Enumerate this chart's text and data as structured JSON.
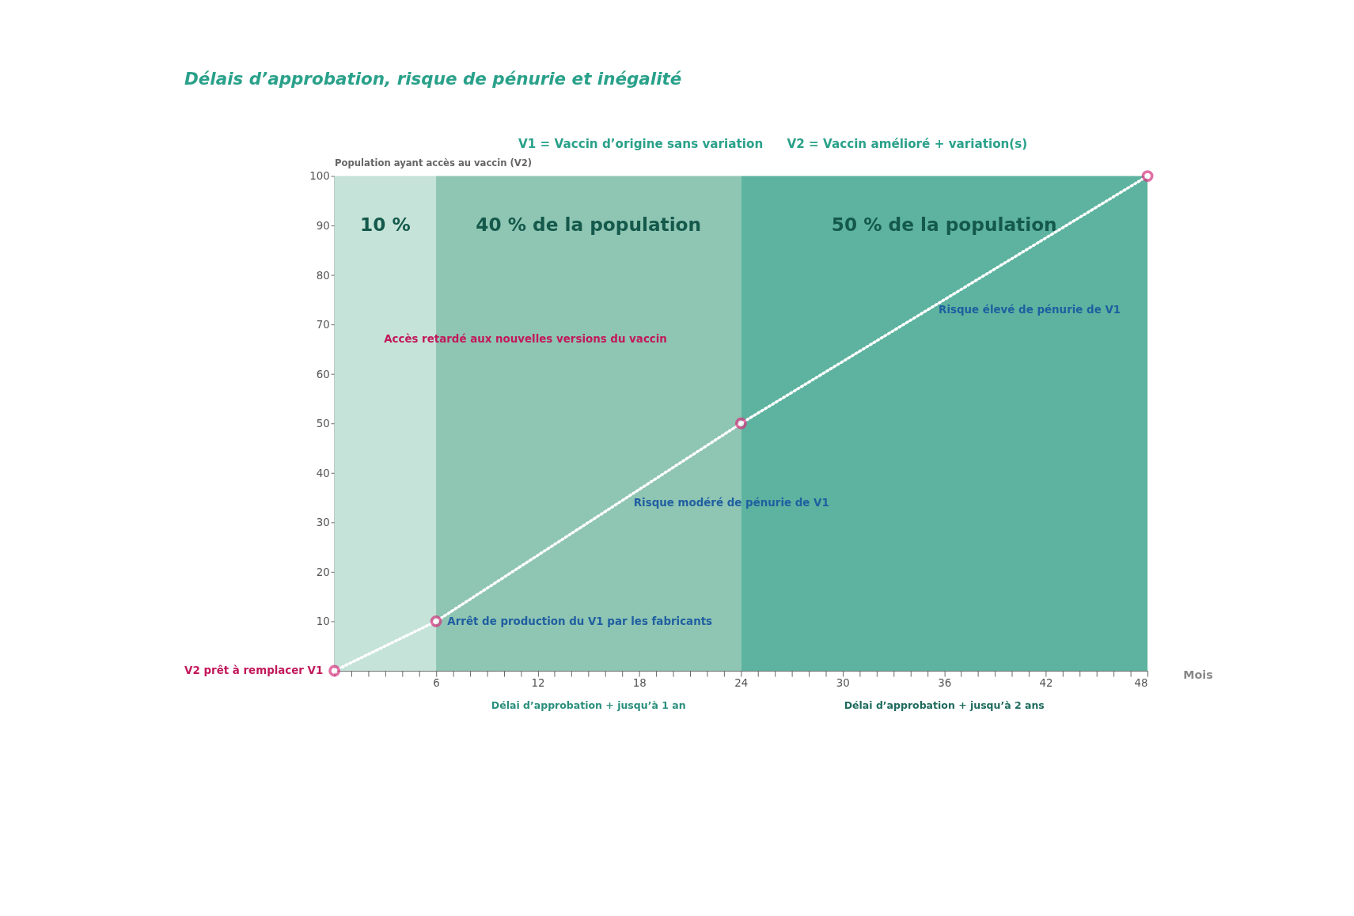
{
  "chart_data": {
    "type": "line",
    "title": "Délais d’approbation, risque de pénurie et inégalité",
    "xlabel": "Mois",
    "ylabel": "Population ayant accès au vaccin (V2)",
    "x": [
      0,
      6,
      24,
      48
    ],
    "series": [
      {
        "color": "#ffffff",
        "values": [
          0,
          10,
          50,
          100
        ]
      }
    ],
    "marker": "circle",
    "line_style": "dotted",
    "grid": false,
    "xlim": [
      0,
      48
    ],
    "xticks": [
      {
        "value": 0,
        "label": null
      },
      {
        "value": 1,
        "label": null
      },
      {
        "value": 2,
        "label": null
      },
      {
        "value": 3,
        "label": null
      },
      {
        "value": 4,
        "label": null
      },
      {
        "value": 5,
        "label": null
      },
      6,
      {
        "value": 7,
        "label": null
      },
      {
        "value": 8,
        "label": null
      },
      {
        "value": 9,
        "label": null
      },
      {
        "value": 10,
        "label": null
      },
      {
        "value": 11,
        "label": null
      },
      12,
      {
        "value": 13,
        "label": null
      },
      {
        "value": 14,
        "label": null
      },
      {
        "value": 15,
        "label": null
      },
      {
        "value": 16,
        "label": null
      },
      {
        "value": 17,
        "label": null
      },
      18,
      {
        "value": 19,
        "label": null
      },
      {
        "value": 20,
        "label": null
      },
      {
        "value": 21,
        "label": null
      },
      {
        "value": 22,
        "label": null
      },
      {
        "value": 23,
        "label": null
      },
      24,
      {
        "value": 25,
        "label": null
      },
      {
        "value": 26,
        "label": null
      },
      {
        "value": 27,
        "label": null
      },
      {
        "value": 28,
        "label": null
      },
      {
        "value": 29,
        "label": null
      },
      30,
      {
        "value": 31,
        "label": null
      },
      {
        "value": 32,
        "label": null
      },
      {
        "value": 33,
        "label": null
      },
      {
        "value": 34,
        "label": null
      },
      {
        "value": 35,
        "label": null
      },
      36,
      {
        "value": 37,
        "label": null
      },
      {
        "value": 38,
        "label": null
      },
      {
        "value": 39,
        "label": null
      },
      {
        "value": 40,
        "label": null
      },
      {
        "value": 41,
        "label": null
      },
      42,
      {
        "value": 43,
        "label": null
      },
      {
        "value": 44,
        "label": null
      },
      {
        "value": 45,
        "label": null
      },
      {
        "value": 46,
        "label": null
      },
      {
        "value": 47,
        "label": null
      },
      48
    ],
    "ylim": [
      0,
      100
    ],
    "yticks": [
      10,
      20,
      30,
      40,
      50,
      60,
      70,
      80,
      90,
      100
    ],
    "bands": [
      {
        "axis": "x",
        "from": 0,
        "to": 6,
        "label": "10 %",
        "color": "#c5e3d8"
      },
      {
        "axis": "x",
        "from": 6,
        "to": 24,
        "label": "40 % de la population",
        "color": "#8fc5b3"
      },
      {
        "axis": "x",
        "from": 24,
        "to": 48,
        "label": "50 % de la population",
        "color": "#5db39f"
      }
    ],
    "annotations": [
      {
        "text": "V2 prêt à remplacer V1",
        "x": 0,
        "y": 0
      },
      {
        "text": "Arrêt de production du V1 par les fabricants",
        "x": 6,
        "y": 10
      },
      {
        "text": "Risque modéré de pénurie de V1",
        "x": 17,
        "y": 34
      },
      {
        "text": "Risque élevé de pénurie de V1",
        "x": 35,
        "y": 73
      },
      "V1 = Vaccin d’origine sans variation",
      "V2 = Vaccin amélioré + variation(s)",
      "Accès retardé aux nouvelles versions du vaccin",
      "Délai d’approbation + jusqu’à 1 an",
      "Délai d’approbation + jusqu’à 2 ans"
    ]
  }
}
